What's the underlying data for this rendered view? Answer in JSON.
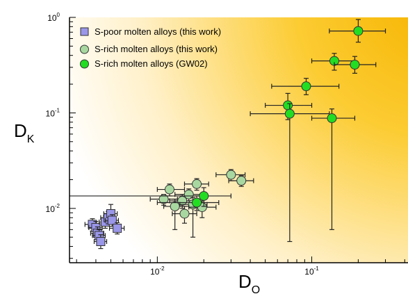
{
  "chart_data": {
    "type": "scatter",
    "title": "",
    "xlabel": {
      "main": "D",
      "sub": "O"
    },
    "ylabel": {
      "main": "D",
      "sub": "K"
    },
    "x_scale": "log",
    "y_scale": "log",
    "xlim": [
      0.0027,
      0.42
    ],
    "ylim": [
      0.0027,
      1.0
    ],
    "x_ticks": [
      {
        "value": 0.01,
        "base": "10",
        "exp": "-2"
      },
      {
        "value": 0.1,
        "base": "10",
        "exp": "-1"
      }
    ],
    "y_ticks": [
      {
        "value": 1.0,
        "base": "10",
        "exp": "0"
      },
      {
        "value": 0.1,
        "base": "10",
        "exp": "-1"
      },
      {
        "value": 0.01,
        "base": "10",
        "exp": "-2"
      }
    ],
    "grid": false,
    "legend_position": "top-left",
    "series": [
      {
        "name": "S-poor molten alloys (this work)",
        "marker": "square",
        "color": "#9a96e8",
        "points": [
          {
            "x": 0.0038,
            "y": 0.0068,
            "xerr": [
              0.0034,
              0.0042
            ],
            "yerr": [
              0.0058,
              0.0078
            ]
          },
          {
            "x": 0.004,
            "y": 0.0063,
            "xerr": [
              0.0036,
              0.0044
            ],
            "yerr": [
              0.0054,
              0.0073
            ]
          },
          {
            "x": 0.0041,
            "y": 0.0055,
            "xerr": [
              0.0037,
              0.0045
            ],
            "yerr": [
              0.0047,
              0.0064
            ]
          },
          {
            "x": 0.0042,
            "y": 0.0052,
            "xerr": [
              0.0038,
              0.0046
            ],
            "yerr": [
              0.0044,
              0.006
            ]
          },
          {
            "x": 0.0043,
            "y": 0.0045,
            "xerr": [
              0.0039,
              0.0047
            ],
            "yerr": [
              0.0038,
              0.0053
            ]
          },
          {
            "x": 0.0046,
            "y": 0.0072,
            "xerr": [
              0.0042,
              0.0051
            ],
            "yerr": [
              0.0062,
              0.0083
            ]
          },
          {
            "x": 0.0048,
            "y": 0.008,
            "xerr": [
              0.0043,
              0.0053
            ],
            "yerr": [
              0.0069,
              0.0093
            ]
          },
          {
            "x": 0.005,
            "y": 0.0088,
            "xerr": [
              0.0045,
              0.0055
            ],
            "yerr": [
              0.0076,
              0.011
            ]
          },
          {
            "x": 0.0051,
            "y": 0.0075,
            "xerr": [
              0.0046,
              0.0056
            ],
            "yerr": [
              0.0065,
              0.0086
            ]
          },
          {
            "x": 0.0055,
            "y": 0.0062,
            "xerr": [
              0.0049,
              0.0061
            ],
            "yerr": [
              0.0054,
              0.0071
            ]
          }
        ]
      },
      {
        "name": "S-rich molten alloys (this work)",
        "marker": "circle",
        "color": "#a8d8a0",
        "points": [
          {
            "x": 0.011,
            "y": 0.0125,
            "xerr": [
              0.009,
              0.0135
            ],
            "yerr": [
              0.0108,
              0.014
            ]
          },
          {
            "x": 0.012,
            "y": 0.0158,
            "xerr": [
              0.01,
              0.015
            ],
            "yerr": [
              0.0135,
              0.018
            ]
          },
          {
            "x": 0.013,
            "y": 0.0105,
            "xerr": [
              0.011,
              0.016
            ],
            "yerr": [
              0.006,
              0.0125
            ]
          },
          {
            "x": 0.0145,
            "y": 0.012,
            "xerr": [
              0.012,
              0.0175
            ],
            "yerr": [
              0.01,
              0.014
            ]
          },
          {
            "x": 0.015,
            "y": 0.0088,
            "xerr": [
              0.0125,
              0.018
            ],
            "yerr": [
              0.007,
              0.0105
            ]
          },
          {
            "x": 0.016,
            "y": 0.014,
            "xerr": [
              0.013,
              0.0195
            ],
            "yerr": [
              0.012,
              0.016
            ]
          },
          {
            "x": 0.017,
            "y": 0.011,
            "xerr": [
              0.014,
              0.021
            ],
            "yerr": [
              0.005,
              0.013
            ]
          },
          {
            "x": 0.018,
            "y": 0.018,
            "xerr": [
              0.015,
              0.0215
            ],
            "yerr": [
              0.0155,
              0.0205
            ]
          },
          {
            "x": 0.0195,
            "y": 0.0103,
            "xerr": [
              0.016,
              0.024
            ],
            "yerr": [
              0.008,
              0.012
            ]
          },
          {
            "x": 0.03,
            "y": 0.0225,
            "xerr": [
              0.024,
              0.037
            ],
            "yerr": [
              0.0195,
              0.0255
            ]
          },
          {
            "x": 0.035,
            "y": 0.0195,
            "xerr": [
              0.029,
              0.042
            ],
            "yerr": [
              0.017,
              0.022
            ]
          }
        ]
      },
      {
        "name": "S-rich molten alloys (GW02)",
        "marker": "circle",
        "color": "#22dd22",
        "points": [
          {
            "x": 0.018,
            "y": 0.0115,
            "xerr": [
              0.01,
              0.025
            ],
            "yerr": [
              0.0095,
              0.0135
            ]
          },
          {
            "x": 0.02,
            "y": 0.0135,
            "xerr": [
              0.0003,
              0.03
            ],
            "yerr": [
              0.0105,
              0.0165
            ]
          },
          {
            "x": 0.07,
            "y": 0.12,
            "xerr": [
              0.05,
              0.1
            ],
            "yerr": [
              0.085,
              0.16
            ]
          },
          {
            "x": 0.072,
            "y": 0.098,
            "xerr": [
              0.04,
              0.13
            ],
            "yerr": [
              0.0045,
              0.125
            ]
          },
          {
            "x": 0.092,
            "y": 0.19,
            "xerr": [
              0.055,
              0.15
            ],
            "yerr": [
              0.155,
              0.23
            ]
          },
          {
            "x": 0.135,
            "y": 0.088,
            "xerr": [
              0.1,
              0.19
            ],
            "yerr": [
              0.006,
              0.11
            ]
          },
          {
            "x": 0.14,
            "y": 0.35,
            "xerr": [
              0.1,
              0.19
            ],
            "yerr": [
              0.28,
              0.42
            ]
          },
          {
            "x": 0.19,
            "y": 0.32,
            "xerr": [
              0.14,
              0.26
            ],
            "yerr": [
              0.26,
              0.39
            ]
          },
          {
            "x": 0.2,
            "y": 0.72,
            "xerr": [
              0.13,
              0.3
            ],
            "yerr": [
              0.55,
              0.95
            ]
          }
        ]
      }
    ]
  }
}
